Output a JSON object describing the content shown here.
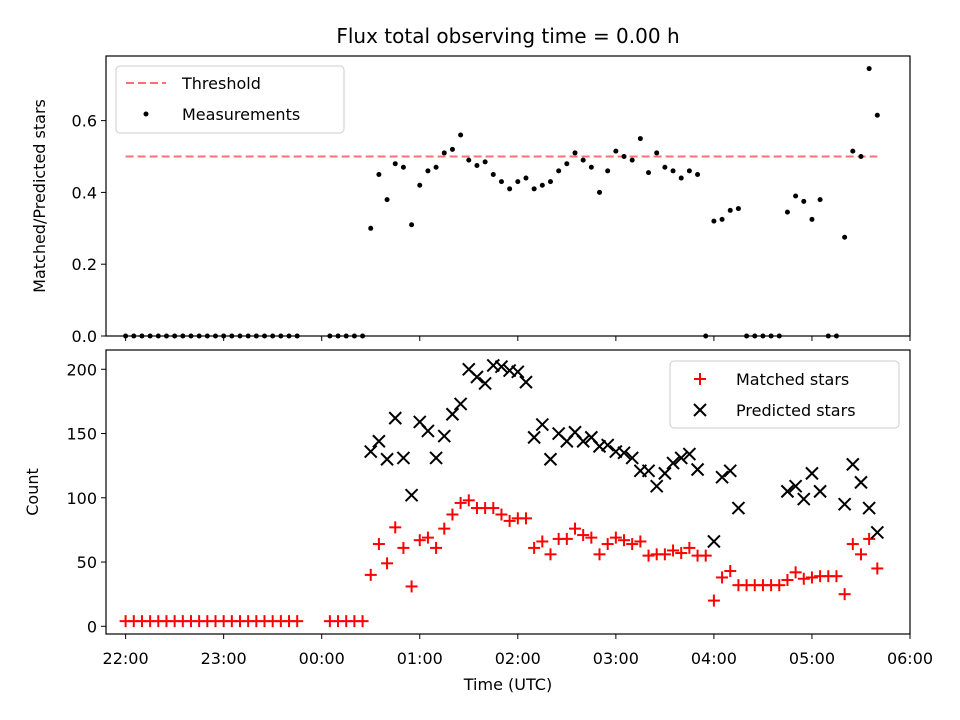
{
  "chart_data": [
    {
      "type": "scatter",
      "title": "Flux total observing time = 0.00 h",
      "ylabel": "Matched/Predicted stars",
      "xlabel": "",
      "xlim": [
        "21:48",
        "06:00"
      ],
      "ylim": [
        0,
        0.78
      ],
      "yticks": [
        "0.0",
        "0.2",
        "0.4",
        "0.6"
      ],
      "legend": {
        "placement": "upper-left",
        "entries": [
          "Threshold",
          "Measurements"
        ]
      },
      "threshold": {
        "name": "Threshold",
        "value": 0.5,
        "x_range": [
          "22:00",
          "05:40"
        ],
        "color": "#ff7070",
        "style": "dashed"
      },
      "series": [
        {
          "name": "Measurements",
          "marker": "dot",
          "color": "#000000",
          "points": [
            [
              "22:00",
              0
            ],
            [
              "22:05",
              0
            ],
            [
              "22:10",
              0
            ],
            [
              "22:15",
              0
            ],
            [
              "22:20",
              0
            ],
            [
              "22:25",
              0
            ],
            [
              "22:30",
              0
            ],
            [
              "22:35",
              0
            ],
            [
              "22:40",
              0
            ],
            [
              "22:45",
              0
            ],
            [
              "22:50",
              0
            ],
            [
              "22:55",
              0
            ],
            [
              "23:00",
              0
            ],
            [
              "23:05",
              0
            ],
            [
              "23:10",
              0
            ],
            [
              "23:15",
              0
            ],
            [
              "23:20",
              0
            ],
            [
              "23:25",
              0
            ],
            [
              "23:30",
              0
            ],
            [
              "23:35",
              0
            ],
            [
              "23:40",
              0
            ],
            [
              "23:45",
              0
            ],
            [
              "00:05",
              0
            ],
            [
              "00:10",
              0
            ],
            [
              "00:15",
              0
            ],
            [
              "00:20",
              0
            ],
            [
              "00:25",
              0
            ],
            [
              "00:30",
              0.3
            ],
            [
              "00:35",
              0.45
            ],
            [
              "00:40",
              0.38
            ],
            [
              "00:45",
              0.48
            ],
            [
              "00:50",
              0.47
            ],
            [
              "00:55",
              0.31
            ],
            [
              "01:00",
              0.42
            ],
            [
              "01:05",
              0.46
            ],
            [
              "01:10",
              0.47
            ],
            [
              "01:15",
              0.51
            ],
            [
              "01:20",
              0.52
            ],
            [
              "01:25",
              0.56
            ],
            [
              "01:30",
              0.49
            ],
            [
              "01:35",
              0.475
            ],
            [
              "01:40",
              0.485
            ],
            [
              "01:45",
              0.45
            ],
            [
              "01:50",
              0.43
            ],
            [
              "01:55",
              0.41
            ],
            [
              "02:00",
              0.43
            ],
            [
              "02:05",
              0.44
            ],
            [
              "02:10",
              0.41
            ],
            [
              "02:15",
              0.42
            ],
            [
              "02:20",
              0.43
            ],
            [
              "02:25",
              0.46
            ],
            [
              "02:30",
              0.48
            ],
            [
              "02:35",
              0.51
            ],
            [
              "02:40",
              0.49
            ],
            [
              "02:45",
              0.47
            ],
            [
              "02:50",
              0.4
            ],
            [
              "02:55",
              0.46
            ],
            [
              "03:00",
              0.515
            ],
            [
              "03:05",
              0.5
            ],
            [
              "03:10",
              0.49
            ],
            [
              "03:15",
              0.55
            ],
            [
              "03:20",
              0.455
            ],
            [
              "03:25",
              0.51
            ],
            [
              "03:30",
              0.47
            ],
            [
              "03:35",
              0.46
            ],
            [
              "03:40",
              0.44
            ],
            [
              "03:45",
              0.46
            ],
            [
              "03:50",
              0.45
            ],
            [
              "03:55",
              0
            ],
            [
              "04:00",
              0.32
            ],
            [
              "04:05",
              0.325
            ],
            [
              "04:10",
              0.35
            ],
            [
              "04:15",
              0.355
            ],
            [
              "04:20",
              0
            ],
            [
              "04:25",
              0
            ],
            [
              "04:30",
              0
            ],
            [
              "04:35",
              0
            ],
            [
              "04:40",
              0
            ],
            [
              "04:45",
              0.345
            ],
            [
              "04:50",
              0.39
            ],
            [
              "04:55",
              0.375
            ],
            [
              "05:00",
              0.325
            ],
            [
              "05:05",
              0.38
            ],
            [
              "05:10",
              0
            ],
            [
              "05:15",
              0
            ],
            [
              "05:20",
              0.275
            ],
            [
              "05:25",
              0.515
            ],
            [
              "05:30",
              0.5
            ],
            [
              "05:35",
              0.745
            ],
            [
              "05:40",
              0.615
            ]
          ]
        }
      ]
    },
    {
      "type": "scatter",
      "title": "",
      "ylabel": "Count",
      "xlabel": "Time (UTC)",
      "xlim": [
        "21:48",
        "06:00"
      ],
      "xticks": [
        "22:00",
        "23:00",
        "00:00",
        "01:00",
        "02:00",
        "03:00",
        "04:00",
        "05:00",
        "06:00"
      ],
      "ylim": [
        -6,
        215
      ],
      "yticks": [
        "0",
        "50",
        "100",
        "150",
        "200"
      ],
      "legend": {
        "placement": "upper-right",
        "entries": [
          "Matched stars",
          "Predicted stars"
        ]
      },
      "series": [
        {
          "name": "Matched stars",
          "marker": "plus",
          "color": "#ff0000",
          "points": [
            [
              "22:00",
              4
            ],
            [
              "22:05",
              4
            ],
            [
              "22:10",
              4
            ],
            [
              "22:15",
              4
            ],
            [
              "22:20",
              4
            ],
            [
              "22:25",
              4
            ],
            [
              "22:30",
              4
            ],
            [
              "22:35",
              4
            ],
            [
              "22:40",
              4
            ],
            [
              "22:45",
              4
            ],
            [
              "22:50",
              4
            ],
            [
              "22:55",
              4
            ],
            [
              "23:00",
              4
            ],
            [
              "23:05",
              4
            ],
            [
              "23:10",
              4
            ],
            [
              "23:15",
              4
            ],
            [
              "23:20",
              4
            ],
            [
              "23:25",
              4
            ],
            [
              "23:30",
              4
            ],
            [
              "23:35",
              4
            ],
            [
              "23:40",
              4
            ],
            [
              "23:45",
              4
            ],
            [
              "00:05",
              4
            ],
            [
              "00:10",
              4
            ],
            [
              "00:15",
              4
            ],
            [
              "00:20",
              4
            ],
            [
              "00:25",
              4
            ],
            [
              "00:30",
              40
            ],
            [
              "00:35",
              64
            ],
            [
              "00:40",
              49
            ],
            [
              "00:45",
              77
            ],
            [
              "00:50",
              61
            ],
            [
              "00:55",
              31
            ],
            [
              "01:00",
              67
            ],
            [
              "01:05",
              69
            ],
            [
              "01:10",
              61
            ],
            [
              "01:15",
              76
            ],
            [
              "01:20",
              87
            ],
            [
              "01:25",
              96
            ],
            [
              "01:30",
              98
            ],
            [
              "01:35",
              92
            ],
            [
              "01:40",
              92
            ],
            [
              "01:45",
              92
            ],
            [
              "01:50",
              87
            ],
            [
              "01:55",
              82
            ],
            [
              "02:00",
              84
            ],
            [
              "02:05",
              84
            ],
            [
              "02:10",
              61
            ],
            [
              "02:15",
              66
            ],
            [
              "02:20",
              56
            ],
            [
              "02:25",
              68
            ],
            [
              "02:30",
              68
            ],
            [
              "02:35",
              76
            ],
            [
              "02:40",
              71
            ],
            [
              "02:45",
              69
            ],
            [
              "02:50",
              56
            ],
            [
              "02:55",
              64
            ],
            [
              "03:00",
              69
            ],
            [
              "03:05",
              67
            ],
            [
              "03:10",
              64
            ],
            [
              "03:15",
              66
            ],
            [
              "03:20",
              55
            ],
            [
              "03:25",
              56
            ],
            [
              "03:30",
              56
            ],
            [
              "03:35",
              59
            ],
            [
              "03:40",
              57
            ],
            [
              "03:45",
              61
            ],
            [
              "03:50",
              55
            ],
            [
              "03:55",
              55
            ],
            [
              "04:00",
              20
            ],
            [
              "04:05",
              38
            ],
            [
              "04:10",
              43
            ],
            [
              "04:15",
              32
            ],
            [
              "04:20",
              32
            ],
            [
              "04:25",
              32
            ],
            [
              "04:30",
              32
            ],
            [
              "04:35",
              32
            ],
            [
              "04:40",
              32
            ],
            [
              "04:45",
              36
            ],
            [
              "04:50",
              42
            ],
            [
              "04:55",
              37
            ],
            [
              "05:00",
              38
            ],
            [
              "05:05",
              39
            ],
            [
              "05:10",
              39
            ],
            [
              "05:15",
              39
            ],
            [
              "05:20",
              25
            ],
            [
              "05:25",
              64
            ],
            [
              "05:30",
              56
            ],
            [
              "05:35",
              68
            ],
            [
              "05:40",
              45
            ]
          ]
        },
        {
          "name": "Predicted stars",
          "marker": "x",
          "color": "#000000",
          "points": [
            [
              "00:30",
              136
            ],
            [
              "00:35",
              144
            ],
            [
              "00:40",
              130
            ],
            [
              "00:45",
              162
            ],
            [
              "00:50",
              131
            ],
            [
              "00:55",
              102
            ],
            [
              "01:00",
              159
            ],
            [
              "01:05",
              152
            ],
            [
              "01:10",
              131
            ],
            [
              "01:15",
              148
            ],
            [
              "01:20",
              165
            ],
            [
              "01:25",
              173
            ],
            [
              "01:30",
              200
            ],
            [
              "01:35",
              194
            ],
            [
              "01:40",
              189
            ],
            [
              "01:45",
              203
            ],
            [
              "01:50",
              202
            ],
            [
              "01:55",
              199
            ],
            [
              "02:00",
              198
            ],
            [
              "02:05",
              190
            ],
            [
              "02:10",
              147
            ],
            [
              "02:15",
              157
            ],
            [
              "02:20",
              130
            ],
            [
              "02:25",
              150
            ],
            [
              "02:30",
              144
            ],
            [
              "02:35",
              151
            ],
            [
              "02:40",
              144
            ],
            [
              "02:45",
              147
            ],
            [
              "02:50",
              140
            ],
            [
              "02:55",
              141
            ],
            [
              "03:00",
              136
            ],
            [
              "03:05",
              135
            ],
            [
              "03:10",
              131
            ],
            [
              "03:15",
              121
            ],
            [
              "03:20",
              121
            ],
            [
              "03:25",
              109
            ],
            [
              "03:30",
              119
            ],
            [
              "03:35",
              127
            ],
            [
              "03:40",
              131
            ],
            [
              "03:45",
              134
            ],
            [
              "03:50",
              122
            ],
            [
              "04:00",
              66
            ],
            [
              "04:05",
              116
            ],
            [
              "04:10",
              121
            ],
            [
              "04:15",
              92
            ],
            [
              "04:45",
              105
            ],
            [
              "04:50",
              109
            ],
            [
              "04:55",
              99
            ],
            [
              "05:00",
              119
            ],
            [
              "05:05",
              105
            ],
            [
              "05:20",
              95
            ],
            [
              "05:25",
              126
            ],
            [
              "05:30",
              112
            ],
            [
              "05:35",
              92
            ],
            [
              "05:40",
              73
            ]
          ]
        }
      ]
    }
  ]
}
